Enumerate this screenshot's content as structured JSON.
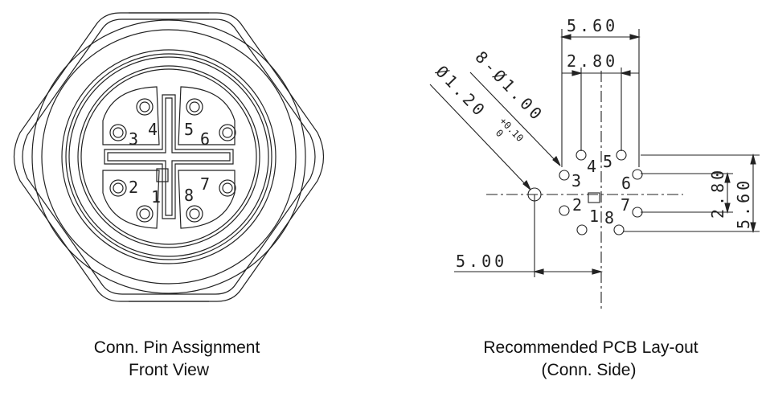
{
  "connector_view": {
    "pin_numbers": [
      "3",
      "4",
      "5",
      "6",
      "2",
      "1",
      "8",
      "7"
    ],
    "caption_line1": "Conn. Pin Assignment",
    "caption_line2": "Front View"
  },
  "pcb_layout": {
    "dim_5_60_top": "5.60",
    "dim_2_80_top": "2.80",
    "dim_hole_pins": "8-Ø1.00",
    "dim_mount_hole": "Ø1.20",
    "dim_tolerance_upper": "+0.10",
    "dim_tolerance_lower": "0",
    "dim_2_80_right": "2.80",
    "dim_5_60_right": "5.60",
    "dim_5_00_bottom": "5.00",
    "pin_numbers": [
      "3",
      "4",
      "5",
      "6",
      "2",
      "1",
      "8",
      "7"
    ],
    "caption_line1": "Recommended PCB Lay-out",
    "caption_line2": "(Conn. Side)"
  },
  "colors": {
    "line": "#222222",
    "background": "#ffffff"
  }
}
